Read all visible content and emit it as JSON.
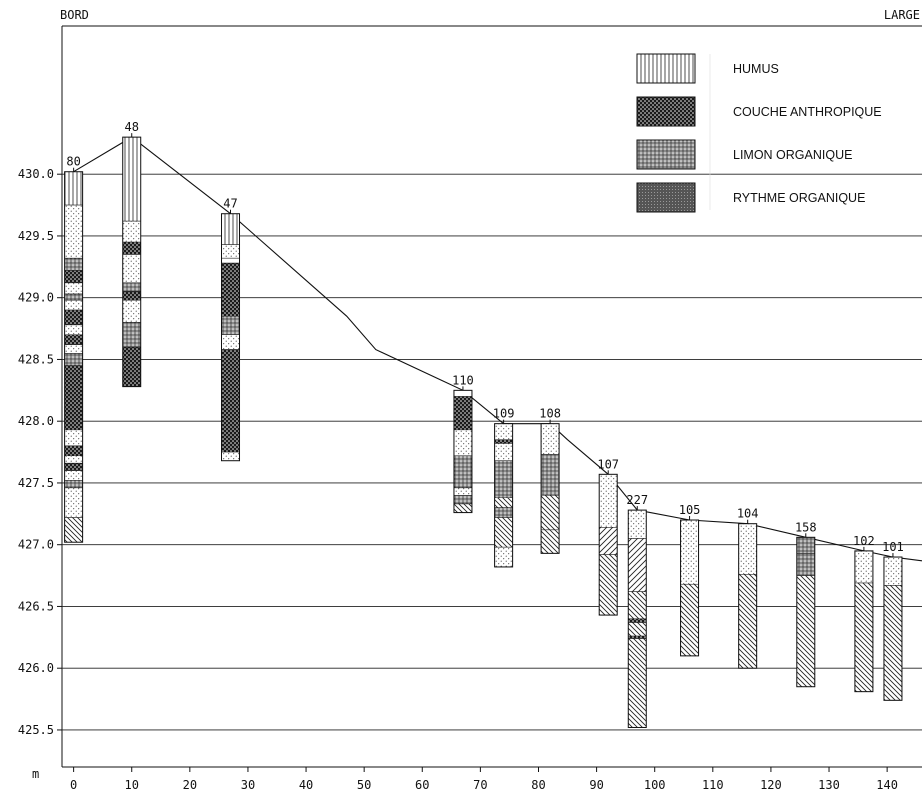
{
  "chart_data": {
    "type": "borehole-profile",
    "corner_left": "BORD",
    "corner_right": "LARGE",
    "xlabel": "m",
    "xlim": [
      -2,
      146
    ],
    "ylim": [
      425.2,
      431.2
    ],
    "x_ticks": [
      0,
      10,
      20,
      30,
      40,
      50,
      60,
      70,
      80,
      90,
      100,
      110,
      120,
      130,
      140
    ],
    "y_ticks": [
      {
        "value": 425.5,
        "label": "425.5"
      },
      {
        "value": 426.0,
        "label": "426.0"
      },
      {
        "value": 426.5,
        "label": "426.5"
      },
      {
        "value": 427.0,
        "label": "427.0"
      },
      {
        "value": 427.5,
        "label": "427.5"
      },
      {
        "value": 428.0,
        "label": "428.0"
      },
      {
        "value": 428.5,
        "label": "428.5"
      },
      {
        "value": 429.0,
        "label": "429.0"
      },
      {
        "value": 429.5,
        "label": "429.5"
      },
      {
        "value": 430.0,
        "label": "430.0"
      }
    ],
    "grid": "horizontal",
    "legend": {
      "position": "top-right",
      "items": [
        {
          "key": "humus",
          "label": "HUMUS"
        },
        {
          "key": "anthro",
          "label": "COUCHE ANTHROPIQUE"
        },
        {
          "key": "limon",
          "label": "LIMON ORGANIQUE"
        },
        {
          "key": "rythme",
          "label": "RYTHME ORGANIQUE"
        }
      ]
    },
    "surface_profile": [
      {
        "x": 0,
        "y": 430.02
      },
      {
        "x": 10,
        "y": 430.3
      },
      {
        "x": 27,
        "y": 429.68
      },
      {
        "x": 47,
        "y": 428.85
      },
      {
        "x": 52,
        "y": 428.58
      },
      {
        "x": 67,
        "y": 428.25
      },
      {
        "x": 74,
        "y": 427.98
      },
      {
        "x": 82,
        "y": 427.98
      },
      {
        "x": 85,
        "y": 427.85
      },
      {
        "x": 92,
        "y": 427.57
      },
      {
        "x": 97,
        "y": 427.28
      },
      {
        "x": 106,
        "y": 427.2
      },
      {
        "x": 116,
        "y": 427.17
      },
      {
        "x": 126,
        "y": 427.06
      },
      {
        "x": 136,
        "y": 426.95
      },
      {
        "x": 141,
        "y": 426.9
      },
      {
        "x": 146,
        "y": 426.87
      }
    ],
    "boreholes": [
      {
        "id": "80",
        "x": 0,
        "top": 430.02,
        "bottom": 427.02,
        "layers": [
          {
            "from": 430.02,
            "to": 429.75,
            "type": "humus"
          },
          {
            "from": 429.75,
            "to": 429.32,
            "type": "dots"
          },
          {
            "from": 429.32,
            "to": 429.22,
            "type": "limon"
          },
          {
            "from": 429.22,
            "to": 429.12,
            "type": "anthro"
          },
          {
            "from": 429.12,
            "to": 429.03,
            "type": "dots"
          },
          {
            "from": 429.03,
            "to": 428.98,
            "type": "limon"
          },
          {
            "from": 428.98,
            "to": 428.9,
            "type": "dots"
          },
          {
            "from": 428.9,
            "to": 428.78,
            "type": "anthro"
          },
          {
            "from": 428.78,
            "to": 428.7,
            "type": "dots"
          },
          {
            "from": 428.7,
            "to": 428.62,
            "type": "anthro"
          },
          {
            "from": 428.62,
            "to": 428.55,
            "type": "dots"
          },
          {
            "from": 428.55,
            "to": 428.45,
            "type": "limon"
          },
          {
            "from": 428.45,
            "to": 427.93,
            "type": "anthro"
          },
          {
            "from": 427.93,
            "to": 427.8,
            "type": "dots"
          },
          {
            "from": 427.8,
            "to": 427.72,
            "type": "anthro"
          },
          {
            "from": 427.72,
            "to": 427.66,
            "type": "dots"
          },
          {
            "from": 427.66,
            "to": 427.6,
            "type": "anthro"
          },
          {
            "from": 427.6,
            "to": 427.52,
            "type": "dots"
          },
          {
            "from": 427.52,
            "to": 427.46,
            "type": "limon"
          },
          {
            "from": 427.46,
            "to": 427.22,
            "type": "dots"
          },
          {
            "from": 427.22,
            "to": 427.02,
            "type": "hatch"
          }
        ]
      },
      {
        "id": "48",
        "x": 10,
        "top": 430.3,
        "bottom": 428.28,
        "layers": [
          {
            "from": 430.3,
            "to": 429.62,
            "type": "humus"
          },
          {
            "from": 429.62,
            "to": 429.45,
            "type": "dots"
          },
          {
            "from": 429.45,
            "to": 429.35,
            "type": "anthro"
          },
          {
            "from": 429.35,
            "to": 429.12,
            "type": "dots"
          },
          {
            "from": 429.12,
            "to": 429.05,
            "type": "limon"
          },
          {
            "from": 429.05,
            "to": 428.98,
            "type": "anthro"
          },
          {
            "from": 428.98,
            "to": 428.8,
            "type": "dots"
          },
          {
            "from": 428.8,
            "to": 428.6,
            "type": "limon"
          },
          {
            "from": 428.6,
            "to": 428.28,
            "type": "anthro"
          }
        ]
      },
      {
        "id": "47",
        "x": 27,
        "top": 429.68,
        "bottom": 427.68,
        "layers": [
          {
            "from": 429.68,
            "to": 429.43,
            "type": "humus"
          },
          {
            "from": 429.43,
            "to": 429.32,
            "type": "dots"
          },
          {
            "from": 429.32,
            "to": 429.28,
            "type": "blank"
          },
          {
            "from": 429.28,
            "to": 428.85,
            "type": "anthro"
          },
          {
            "from": 428.85,
            "to": 428.7,
            "type": "limon"
          },
          {
            "from": 428.7,
            "to": 428.58,
            "type": "dots"
          },
          {
            "from": 428.58,
            "to": 427.75,
            "type": "anthro"
          },
          {
            "from": 427.75,
            "to": 427.68,
            "type": "dots"
          }
        ]
      },
      {
        "id": "110",
        "x": 67,
        "top": 428.25,
        "bottom": 427.26,
        "layers": [
          {
            "from": 428.25,
            "to": 428.2,
            "type": "blank"
          },
          {
            "from": 428.2,
            "to": 427.93,
            "type": "anthro"
          },
          {
            "from": 427.93,
            "to": 427.72,
            "type": "dots"
          },
          {
            "from": 427.72,
            "to": 427.46,
            "type": "limon"
          },
          {
            "from": 427.46,
            "to": 427.4,
            "type": "dots"
          },
          {
            "from": 427.4,
            "to": 427.33,
            "type": "limon"
          },
          {
            "from": 427.33,
            "to": 427.26,
            "type": "hatch"
          }
        ]
      },
      {
        "id": "109",
        "x": 74,
        "top": 427.98,
        "bottom": 426.82,
        "layers": [
          {
            "from": 427.98,
            "to": 427.85,
            "type": "dots"
          },
          {
            "from": 427.85,
            "to": 427.82,
            "type": "anthro"
          },
          {
            "from": 427.82,
            "to": 427.68,
            "type": "dots"
          },
          {
            "from": 427.68,
            "to": 427.38,
            "type": "limon"
          },
          {
            "from": 427.38,
            "to": 427.3,
            "type": "hatch"
          },
          {
            "from": 427.3,
            "to": 427.22,
            "type": "limon"
          },
          {
            "from": 427.22,
            "to": 426.98,
            "type": "hatch"
          },
          {
            "from": 426.98,
            "to": 426.82,
            "type": "dots"
          }
        ]
      },
      {
        "id": "108",
        "x": 82,
        "top": 427.98,
        "bottom": 426.93,
        "layers": [
          {
            "from": 427.98,
            "to": 427.73,
            "type": "dots"
          },
          {
            "from": 427.73,
            "to": 427.4,
            "type": "limon"
          },
          {
            "from": 427.4,
            "to": 427.12,
            "type": "hatch"
          },
          {
            "from": 427.12,
            "to": 426.93,
            "type": "hatch"
          }
        ]
      },
      {
        "id": "107",
        "x": 92,
        "top": 427.57,
        "bottom": 426.43,
        "layers": [
          {
            "from": 427.57,
            "to": 427.14,
            "type": "dots"
          },
          {
            "from": 427.14,
            "to": 426.92,
            "type": "hatchR"
          },
          {
            "from": 426.92,
            "to": 426.43,
            "type": "hatch"
          }
        ]
      },
      {
        "id": "227",
        "x": 97,
        "top": 427.28,
        "bottom": 425.52,
        "layers": [
          {
            "from": 427.28,
            "to": 427.05,
            "type": "dots"
          },
          {
            "from": 427.05,
            "to": 426.62,
            "type": "hatchR"
          },
          {
            "from": 426.62,
            "to": 426.4,
            "type": "hatch"
          },
          {
            "from": 426.4,
            "to": 426.37,
            "type": "anthro"
          },
          {
            "from": 426.37,
            "to": 426.26,
            "type": "hatch"
          },
          {
            "from": 426.26,
            "to": 426.24,
            "type": "anthro"
          },
          {
            "from": 426.24,
            "to": 425.52,
            "type": "hatch"
          }
        ]
      },
      {
        "id": "105",
        "x": 106,
        "top": 427.2,
        "bottom": 426.1,
        "layers": [
          {
            "from": 427.2,
            "to": 426.68,
            "type": "dots"
          },
          {
            "from": 426.68,
            "to": 426.1,
            "type": "hatch"
          }
        ]
      },
      {
        "id": "104",
        "x": 116,
        "top": 427.17,
        "bottom": 426.0,
        "layers": [
          {
            "from": 427.17,
            "to": 426.76,
            "type": "dots"
          },
          {
            "from": 426.76,
            "to": 426.0,
            "type": "hatch"
          }
        ]
      },
      {
        "id": "158",
        "x": 126,
        "top": 427.06,
        "bottom": 425.85,
        "layers": [
          {
            "from": 427.06,
            "to": 426.93,
            "type": "limon"
          },
          {
            "from": 426.93,
            "to": 426.75,
            "type": "limon"
          },
          {
            "from": 426.75,
            "to": 425.85,
            "type": "hatch"
          }
        ]
      },
      {
        "id": "102",
        "x": 136,
        "top": 426.95,
        "bottom": 425.81,
        "layers": [
          {
            "from": 426.95,
            "to": 426.69,
            "type": "dots"
          },
          {
            "from": 426.69,
            "to": 425.81,
            "type": "hatch"
          }
        ]
      },
      {
        "id": "101",
        "x": 141,
        "top": 426.9,
        "bottom": 425.74,
        "layers": [
          {
            "from": 426.9,
            "to": 426.67,
            "type": "dots"
          },
          {
            "from": 426.67,
            "to": 425.74,
            "type": "hatch"
          }
        ]
      }
    ]
  }
}
